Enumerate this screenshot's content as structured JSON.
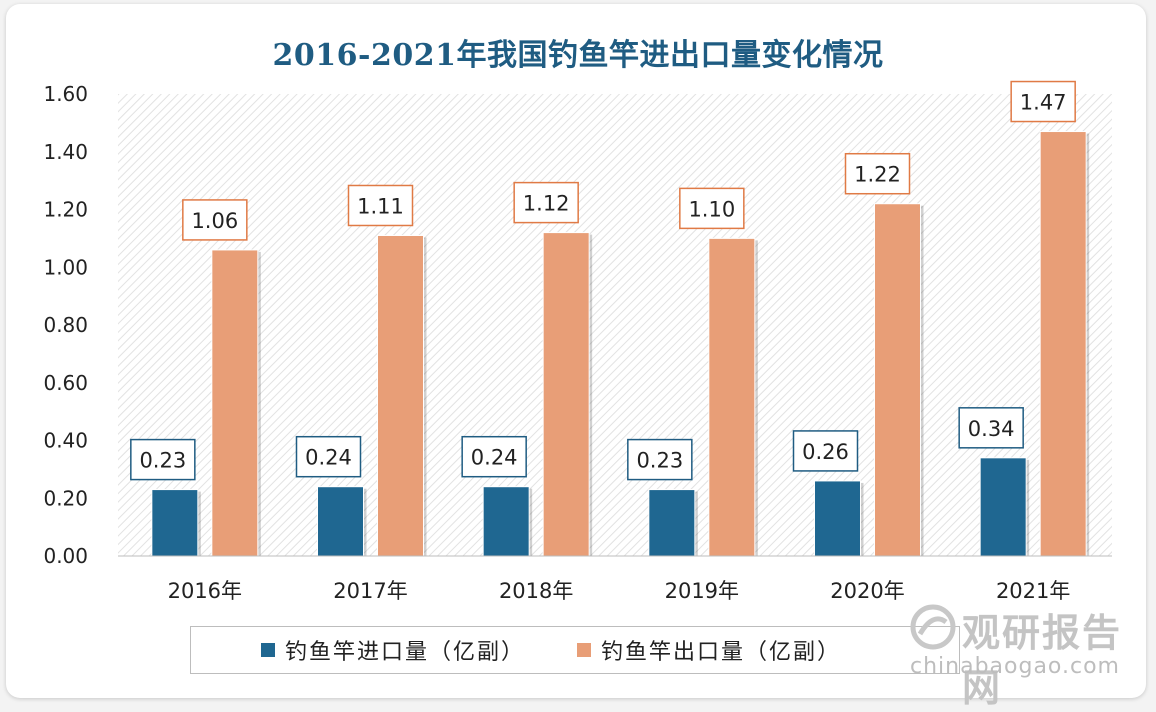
{
  "chart_data": {
    "type": "bar",
    "title": "2016-2021年我国钓鱼竿进出口量变化情况",
    "categories": [
      "2016年",
      "2017年",
      "2018年",
      "2019年",
      "2020年",
      "2021年"
    ],
    "series": [
      {
        "name": "钓鱼竿进口量（亿副）",
        "values": [
          0.23,
          0.24,
          0.24,
          0.23,
          0.26,
          0.34
        ],
        "color": "#1f6791"
      },
      {
        "name": "钓鱼竿出口量（亿副）",
        "values": [
          1.06,
          1.11,
          1.12,
          1.1,
          1.22,
          1.47
        ],
        "color": "#e89e77"
      }
    ],
    "value_labels": [
      [
        "0.23",
        "0.24",
        "0.24",
        "0.23",
        "0.26",
        "0.34"
      ],
      [
        "1.06",
        "1.11",
        "1.12",
        "1.10",
        "1.22",
        "1.47"
      ]
    ],
    "yticks": [
      "0.00",
      "0.20",
      "0.40",
      "0.60",
      "0.80",
      "1.00",
      "1.20",
      "1.40",
      "1.60"
    ],
    "ylim": [
      0,
      1.6
    ],
    "xlabel": "",
    "ylabel": "",
    "grid": false,
    "legend_position": "bottom",
    "label_border_colors": [
      "#1f5c82",
      "#e07a45"
    ]
  },
  "watermark": {
    "name_cn": "观研报告网",
    "site": "chinabaogao.com"
  }
}
